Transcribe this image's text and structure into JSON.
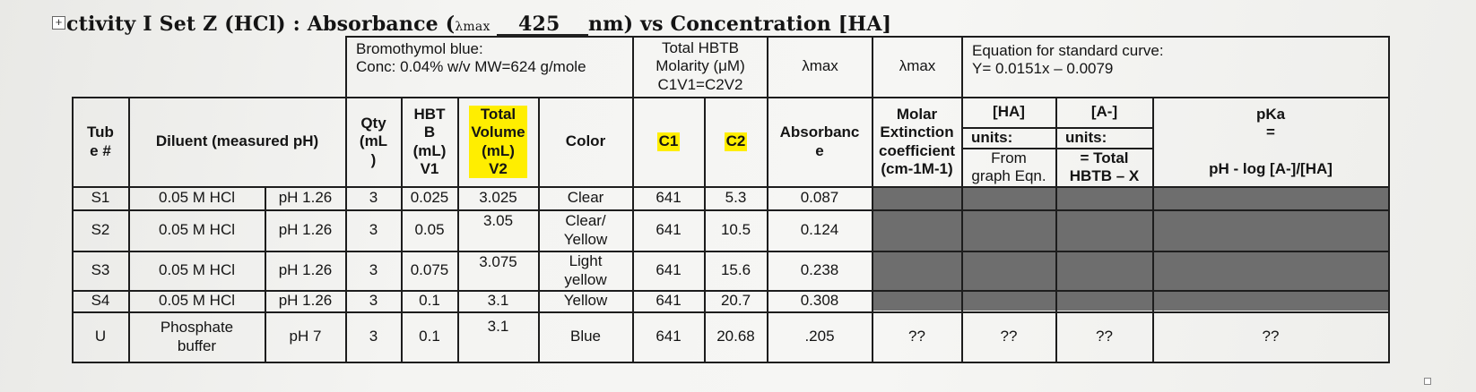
{
  "title": {
    "prefix": "ctivity I Set Z (HCl) : Absorbance (",
    "lambda": "λmax",
    "value": "425",
    "suffix": "nm) vs Concentration [HA]"
  },
  "top_header": {
    "bromothymol": "Bromothymol blue:\nConc: 0.04% w/v MW=624 g/mole",
    "total_hbtb": "Total HBTB\nMolarity (μM)\nC1V1=C2V2",
    "lambda_max_1": "λmax",
    "lambda_max_2": "λmax",
    "equation": "Equation for standard curve:\nY= 0.0151x – 0.0079"
  },
  "headers": {
    "tube": "Tub\ne #",
    "diluent": "Diluent (measured pH)",
    "qty": "Qty\n(mL\n)",
    "hbtb": "HBT\nB\n(mL)\nV1",
    "total_volume": "Total\nVolume\n(mL)\nV2",
    "color": "Color",
    "c1": "C1",
    "c2": "C2",
    "absorbance": "Absorbanc\ne",
    "molar": "Molar\nExtinction\ncoefficient\n(cm-1M-1)",
    "ha_label": "[HA]",
    "ha_units": "units:",
    "ha_note": "From\ngraph Eqn.",
    "a_label": "[A-]",
    "a_units": "units:",
    "a_note": "= Total\nHBTB – X",
    "pka": "pKa\n=\n\npH - log [A-]/[HA]"
  },
  "rows": [
    {
      "tube": "S1",
      "diluent": "0.05 M HCl",
      "ph": "pH 1.26",
      "qty": "3",
      "hbtb": "0.025",
      "total": "3.025",
      "color": "Clear",
      "c1": "641",
      "c2": "5.3",
      "abs": "0.087",
      "molar": "",
      "ha": "",
      "a": "",
      "pka": ""
    },
    {
      "tube": "S2",
      "diluent": "0.05 M HCl",
      "ph": "pH 1.26",
      "qty": "3",
      "hbtb": "0.05",
      "total": "3.05",
      "color": "Clear/\nYellow",
      "c1": "641",
      "c2": "10.5",
      "abs": "0.124",
      "molar": "",
      "ha": "",
      "a": "",
      "pka": ""
    },
    {
      "tube": "S3",
      "diluent": "0.05 M HCl",
      "ph": "pH 1.26",
      "qty": "3",
      "hbtb": "0.075",
      "total": "3.075",
      "color": "Light\nyellow",
      "c1": "641",
      "c2": "15.6",
      "abs": "0.238",
      "molar": "",
      "ha": "",
      "a": "",
      "pka": ""
    },
    {
      "tube": "S4",
      "diluent": "0.05 M HCl",
      "ph": "pH 1.26",
      "qty": "3",
      "hbtb": "0.1",
      "total": "3.1",
      "color": "Yellow",
      "c1": "641",
      "c2": "20.7",
      "abs": "0.308",
      "molar": "",
      "ha": "",
      "a": "",
      "pka": ""
    },
    {
      "tube": "U",
      "diluent": "Phosphate\nbuffer",
      "ph": "pH 7",
      "qty": "3",
      "hbtb": "0.1",
      "total": "3.1",
      "color": "Blue",
      "c1": "641",
      "c2": "20.68",
      "abs": ".205",
      "molar": "??",
      "ha": "??",
      "a": "??",
      "pka": "??"
    }
  ],
  "colors": {
    "highlight": "#ffee00",
    "shaded": "#6e6e6e"
  }
}
